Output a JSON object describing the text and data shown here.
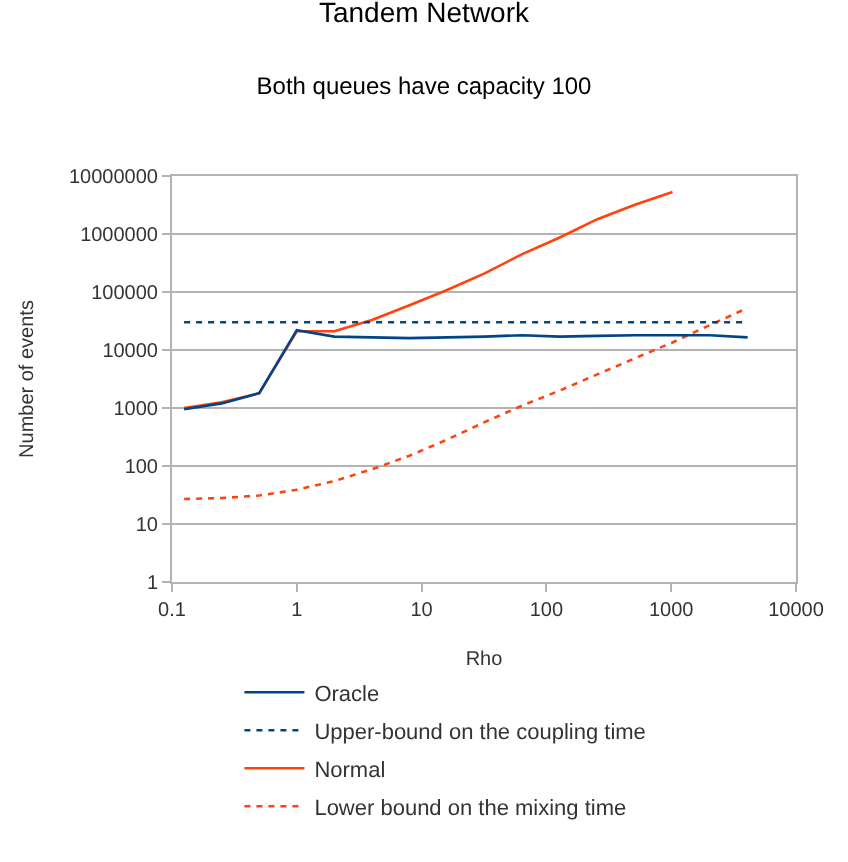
{
  "chart_data": {
    "type": "line",
    "title": "Tandem Network",
    "subtitle": "Both queues have capacity 100",
    "xlabel": "Rho",
    "ylabel": "Number of events",
    "log": "xy",
    "grid": "y",
    "legend": "bottom",
    "marker": "none",
    "xlim": [
      0.1,
      10000
    ],
    "xticks": [
      0.1,
      1,
      10,
      100,
      1000,
      10000
    ],
    "ylim": [
      1,
      10000000
    ],
    "yticks": [
      1,
      10,
      100,
      1000,
      10000,
      100000,
      1000000,
      10000000
    ],
    "x": [
      0.125,
      0.25,
      0.5,
      1,
      2,
      4,
      8,
      16,
      32,
      64,
      128,
      256,
      512,
      1024,
      2048,
      4096
    ],
    "series": [
      {
        "name": "Oracle",
        "color": "#004586",
        "line_style": "solid",
        "values": [
          950,
          1200,
          1800,
          22000,
          17000,
          16500,
          16000,
          16500,
          17000,
          18000,
          17000,
          17500,
          18000,
          18000,
          18000,
          16500
        ]
      },
      {
        "name": "Upper-bound on the coupling time",
        "color": "#004586",
        "line_style": "dotted",
        "values": [
          30000,
          30000,
          30000,
          30000,
          30000,
          30000,
          30000,
          30000,
          30000,
          30000,
          30000,
          30000,
          30000,
          30000,
          30000,
          30000
        ]
      },
      {
        "name": "Normal",
        "color": "#ff420e",
        "line_style": "solid",
        "values": [
          1000,
          1250,
          1800,
          21000,
          21000,
          33000,
          59000,
          108000,
          210000,
          450000,
          870000,
          1800000,
          3200000,
          5300000,
          null,
          null
        ]
      },
      {
        "name": "Lower bound on the mixing time",
        "color": "#ff420e",
        "line_style": "dotted",
        "values": [
          27,
          28,
          31,
          39,
          55,
          88,
          150,
          285,
          570,
          1100,
          2000,
          3800,
          7200,
          13500,
          27000,
          53000
        ]
      }
    ]
  }
}
